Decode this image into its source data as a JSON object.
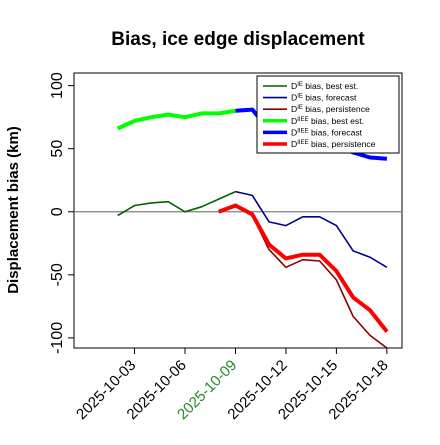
{
  "chart_data": {
    "type": "line",
    "title": "Bias, ice edge displacement",
    "ylabel": "Displacement bias (km)",
    "xlabel": "",
    "ylim": [
      -108,
      110
    ],
    "yticks": [
      -100,
      -50,
      0,
      50,
      100
    ],
    "x_start_date": "2025-10-02",
    "xlim_day_index": [
      -2.6,
      16.9
    ],
    "xticks": [
      {
        "label": "2025-10-03",
        "day": 1,
        "color": "#000000"
      },
      {
        "label": "2025-10-06",
        "day": 4,
        "color": "#000000"
      },
      {
        "label": "2025-10-09",
        "day": 7,
        "color": "#228B22"
      },
      {
        "label": "2025-10-12",
        "day": 10,
        "color": "#000000"
      },
      {
        "label": "2025-10-15",
        "day": 13,
        "color": "#000000"
      },
      {
        "label": "2025-10-18",
        "day": 16,
        "color": "#000000"
      }
    ],
    "zero_line": {
      "y": 0,
      "color": "#808080"
    },
    "grid": false,
    "legend_position": "top-right",
    "series": [
      {
        "name": "D^IE bias, best est.",
        "legend_main": "D",
        "legend_sup": "IE",
        "legend_rest": " bias, best est.",
        "color": "#006400",
        "width": 1.6,
        "x": [
          0,
          1,
          2,
          3,
          4,
          5,
          6,
          7
        ],
        "y": [
          -3,
          5,
          7,
          8,
          0,
          4,
          10,
          16
        ]
      },
      {
        "name": "D^IE bias, forecast",
        "legend_main": "D",
        "legend_sup": "IE",
        "legend_rest": " bias, forecast",
        "color": "#00008B",
        "width": 1.6,
        "x": [
          7,
          8,
          9,
          10,
          11,
          12,
          13,
          14,
          15,
          16
        ],
        "y": [
          16,
          13,
          -8,
          -11,
          -4,
          -4,
          -11,
          -31,
          -36,
          -44
        ]
      },
      {
        "name": "D^IE bias, persistence",
        "legend_main": "D",
        "legend_sup": "IE",
        "legend_rest": " bias, persistence",
        "color": "#8B0000",
        "width": 1.6,
        "x": [
          6,
          7,
          8,
          9,
          10,
          11,
          12,
          13,
          14,
          15,
          16
        ],
        "y": [
          0,
          4,
          -3,
          -30,
          -44,
          -38,
          -39,
          -54,
          -83,
          -98,
          -108
        ]
      },
      {
        "name": "D^IIEE bias, best est.",
        "legend_main": "D",
        "legend_sup": "IIEE",
        "legend_rest": " bias, best est.",
        "color": "#00FF00",
        "width": 4,
        "x": [
          0,
          1,
          2,
          3,
          4,
          5,
          6,
          7
        ],
        "y": [
          66,
          72,
          75,
          77,
          75,
          78,
          78,
          80
        ]
      },
      {
        "name": "D^IIEE bias, forecast",
        "legend_main": "D",
        "legend_sup": "IIEE",
        "legend_rest": " bias, forecast",
        "color": "#0000FF",
        "width": 4,
        "x": [
          7,
          8,
          9,
          10,
          11,
          12,
          13,
          14,
          15,
          16
        ],
        "y": [
          80,
          81,
          65,
          61,
          59,
          56,
          53,
          47,
          43,
          42
        ]
      },
      {
        "name": "D^IIEE bias, persistence",
        "legend_main": "D",
        "legend_sup": "IIEE",
        "legend_rest": " bias, persistence",
        "color": "#FF0000",
        "width": 4,
        "x": [
          6,
          7,
          8,
          9,
          10,
          11,
          12,
          13,
          14,
          15,
          16
        ],
        "y": [
          0,
          5,
          -2,
          -26,
          -37,
          -34,
          -34,
          -47,
          -68,
          -78,
          -95
        ]
      }
    ]
  }
}
